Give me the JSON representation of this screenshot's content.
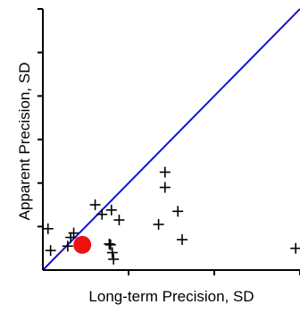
{
  "chart_data": {
    "type": "scatter",
    "title": "",
    "xlabel": "Long-term Precision, SD",
    "ylabel": "Apparent Precision, SD",
    "xlim": [
      0,
      6
    ],
    "ylim": [
      0,
      6
    ],
    "grid": false,
    "legend": "none",
    "reference_line": {
      "type": "identity",
      "points": [
        [
          0,
          0
        ],
        [
          6,
          6
        ]
      ],
      "color": "#1414d4"
    },
    "series": [
      {
        "marker": "plus",
        "color": "#000000",
        "points": [
          [
            0.12,
            0.95
          ],
          [
            0.18,
            0.45
          ],
          [
            0.58,
            0.55
          ],
          [
            0.65,
            0.75
          ],
          [
            0.72,
            0.85
          ],
          [
            1.22,
            1.5
          ],
          [
            1.38,
            1.28
          ],
          [
            1.55,
            0.6
          ],
          [
            1.58,
            0.58
          ],
          [
            1.6,
            1.38
          ],
          [
            1.62,
            0.4
          ],
          [
            1.65,
            0.25
          ],
          [
            1.78,
            1.15
          ],
          [
            2.7,
            1.05
          ],
          [
            2.85,
            2.25
          ],
          [
            2.85,
            1.9
          ],
          [
            3.15,
            1.35
          ],
          [
            3.25,
            0.7
          ],
          [
            5.9,
            0.5
          ]
        ]
      },
      {
        "marker": "circle",
        "color": "#ee1111",
        "points": [
          [
            0.92,
            0.58
          ]
        ]
      }
    ]
  }
}
